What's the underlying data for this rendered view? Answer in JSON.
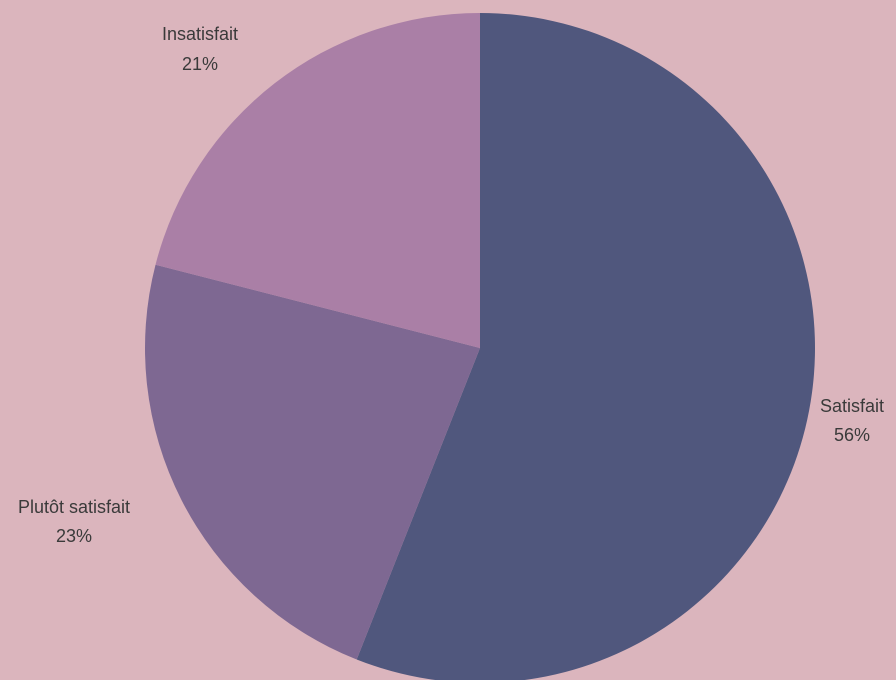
{
  "chart_data": {
    "type": "pie",
    "title": "",
    "background": "#dbb5bd",
    "slices": [
      {
        "label": "Satisfait",
        "value": 56,
        "value_label": "56%",
        "color": "#50577d"
      },
      {
        "label": "Plutôt satisfait",
        "value": 23,
        "value_label": "23%",
        "color": "#7e6892"
      },
      {
        "label": "Insatisfait",
        "value": 21,
        "value_label": "21%",
        "color": "#aa7fa6"
      }
    ]
  }
}
